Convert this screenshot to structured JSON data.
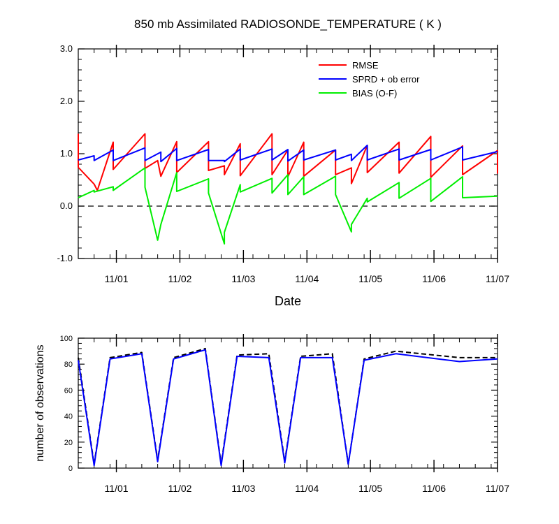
{
  "chart_data": [
    {
      "type": "line",
      "title": "850 mb Assimilated RADIOSONDE_TEMPERATURE ( K )",
      "xlabel": "Date",
      "ylabel": "",
      "xlim": [
        0,
        6.6
      ],
      "ylim": [
        -1.0,
        3.0
      ],
      "yticks": [
        -1.0,
        0.0,
        1.0,
        2.0,
        3.0
      ],
      "ytick_labels": [
        "-1.0",
        "0.0",
        "1.0",
        "2.0",
        "3.0"
      ],
      "xticks": [
        0.6,
        1.6,
        2.6,
        3.6,
        4.6,
        5.6,
        6.6
      ],
      "xtick_labels": [
        "11/01",
        "11/02",
        "11/03",
        "11/04",
        "11/05",
        "11/06",
        "11/07"
      ],
      "zero_line": true,
      "grid": false,
      "legend": "top-right",
      "series": [
        {
          "name": "RMSE",
          "color": "#ff0000",
          "x": [
            0.0,
            0.0,
            0.25,
            0.3,
            0.55,
            0.55,
            1.05,
            1.05,
            1.25,
            1.3,
            1.55,
            1.55,
            2.05,
            2.05,
            2.3,
            2.3,
            2.55,
            2.55,
            3.05,
            3.05,
            3.3,
            3.3,
            3.55,
            3.55,
            4.05,
            4.05,
            4.3,
            4.3,
            4.55,
            4.55,
            5.05,
            5.05,
            5.55,
            5.55,
            6.05,
            6.05,
            6.6,
            6.6
          ],
          "y": [
            1.38,
            0.74,
            0.42,
            0.3,
            1.22,
            0.7,
            1.38,
            0.72,
            0.87,
            0.57,
            1.23,
            0.64,
            1.23,
            0.68,
            0.77,
            0.6,
            1.19,
            0.58,
            1.38,
            0.6,
            1.07,
            0.56,
            1.22,
            0.57,
            1.07,
            0.6,
            0.73,
            0.43,
            1.16,
            0.64,
            1.22,
            0.63,
            1.33,
            0.55,
            1.15,
            0.6,
            1.06,
            0.62
          ]
        },
        {
          "name": "SPRD + ob error",
          "color": "#0000ff",
          "x": [
            0.0,
            0.25,
            0.25,
            0.55,
            0.55,
            1.05,
            1.05,
            1.3,
            1.3,
            1.55,
            1.55,
            2.05,
            2.05,
            2.3,
            2.3,
            2.55,
            2.55,
            3.05,
            3.05,
            3.3,
            3.3,
            3.55,
            3.55,
            4.05,
            4.05,
            4.3,
            4.3,
            4.55,
            4.55,
            5.05,
            5.05,
            5.55,
            5.55,
            6.05,
            6.05,
            6.6
          ],
          "y": [
            0.88,
            0.96,
            0.87,
            1.07,
            0.87,
            1.11,
            0.87,
            1.03,
            0.85,
            1.1,
            0.87,
            1.08,
            0.87,
            0.87,
            0.85,
            1.09,
            0.88,
            1.09,
            0.88,
            1.08,
            0.86,
            1.07,
            0.88,
            1.07,
            0.88,
            0.99,
            0.87,
            1.16,
            0.88,
            1.09,
            0.88,
            1.08,
            0.88,
            1.13,
            0.88,
            1.04
          ]
        },
        {
          "name": "BIAS (O-F)",
          "color": "#00ee00",
          "x": [
            0.0,
            0.25,
            0.25,
            0.55,
            0.55,
            1.05,
            1.05,
            1.25,
            1.3,
            1.3,
            1.55,
            1.55,
            2.05,
            2.05,
            2.3,
            2.3,
            2.55,
            2.55,
            3.05,
            3.05,
            3.3,
            3.3,
            3.55,
            3.55,
            4.05,
            4.05,
            4.3,
            4.3,
            4.55,
            4.55,
            5.05,
            5.05,
            5.55,
            5.55,
            6.05,
            6.05,
            6.6
          ],
          "y": [
            0.16,
            0.3,
            0.27,
            0.37,
            0.3,
            0.73,
            0.36,
            -0.65,
            -0.35,
            -0.35,
            0.64,
            0.28,
            0.52,
            0.25,
            -0.72,
            -0.5,
            0.41,
            0.27,
            0.53,
            0.25,
            0.6,
            0.22,
            0.56,
            0.22,
            0.57,
            0.22,
            -0.49,
            -0.35,
            0.15,
            0.08,
            0.45,
            0.15,
            0.53,
            0.09,
            0.56,
            0.16,
            0.19
          ]
        }
      ]
    },
    {
      "type": "line",
      "title": "",
      "xlabel": "",
      "ylabel": "number of observations",
      "xlim": [
        0,
        6.6
      ],
      "ylim": [
        0,
        100
      ],
      "yticks": [
        0,
        20,
        40,
        60,
        80,
        100
      ],
      "ytick_labels": [
        "0",
        "20",
        "40",
        "60",
        "80",
        "100"
      ],
      "xticks": [
        0.6,
        1.6,
        2.6,
        3.6,
        4.6,
        5.6,
        6.6
      ],
      "xtick_labels": [
        "11/01",
        "11/02",
        "11/03",
        "11/04",
        "11/05",
        "11/06",
        "11/07"
      ],
      "grid": false,
      "series": [
        {
          "color": "#000000",
          "dash": true,
          "x": [
            0.0,
            0.25,
            0.5,
            1.0,
            1.25,
            1.5,
            2.0,
            2.25,
            2.5,
            3.0,
            3.25,
            3.5,
            4.0,
            4.25,
            4.5,
            5.0,
            6.0,
            6.6
          ],
          "y": [
            85,
            3,
            85,
            89,
            6,
            85,
            92,
            3,
            87,
            88,
            5,
            86,
            88,
            3,
            84,
            90,
            85,
            85
          ]
        },
        {
          "color": "#0000ff",
          "dash": false,
          "x": [
            0.0,
            0.25,
            0.5,
            1.0,
            1.25,
            1.5,
            2.0,
            2.25,
            2.5,
            3.0,
            3.25,
            3.5,
            4.0,
            4.25,
            4.5,
            5.0,
            6.0,
            6.6
          ],
          "y": [
            83,
            2,
            84,
            88,
            5,
            84,
            91,
            2,
            86,
            85,
            4,
            85,
            85,
            3,
            83,
            88,
            82,
            84
          ]
        }
      ]
    }
  ]
}
